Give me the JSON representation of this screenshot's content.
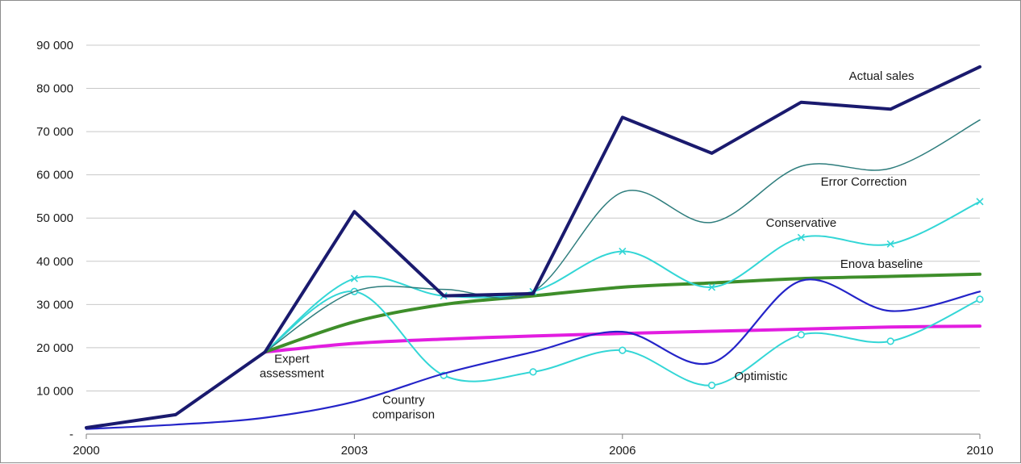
{
  "chart_data": {
    "type": "line",
    "title": "",
    "xlabel": "",
    "ylabel": "",
    "x": [
      2000,
      2001,
      2002,
      2003,
      2004,
      2005,
      2006,
      2007,
      2008,
      2009,
      2010
    ],
    "xlim": [
      2000,
      2010
    ],
    "ylim": [
      0,
      90000
    ],
    "x_tick_labels": [
      "2000",
      "2003",
      "2006",
      "2010"
    ],
    "x_tick_values": [
      2000,
      2003,
      2006,
      2010
    ],
    "y_tick_labels": [
      "-",
      "10 000",
      "20 000",
      "30 000",
      "40 000",
      "50 000",
      "60 000",
      "70 000",
      "80 000",
      "90 000"
    ],
    "y_tick_values": [
      0,
      10000,
      20000,
      30000,
      40000,
      50000,
      60000,
      70000,
      80000,
      90000
    ],
    "grid": true,
    "legend": "none",
    "series": [
      {
        "name": "Actual sales",
        "color": "#1a1a6e",
        "marker": "none",
        "smooth": false,
        "x": [
          2000,
          2001,
          2002,
          2003,
          2004,
          2005,
          2006,
          2007,
          2008,
          2009,
          2010
        ],
        "values": [
          1500,
          4500,
          19000,
          51500,
          32000,
          32500,
          73300,
          65000,
          76800,
          75200,
          85000
        ]
      },
      {
        "name": "Error Correction",
        "color": "#2e7d7d",
        "marker": "none",
        "smooth": true,
        "x": [
          2002,
          2003,
          2004,
          2005,
          2006,
          2007,
          2008,
          2009,
          2010
        ],
        "values": [
          19000,
          33000,
          33500,
          33000,
          56000,
          49000,
          62000,
          61500,
          72700
        ]
      },
      {
        "name": "Conservative",
        "color": "#33d6d6",
        "marker": "x",
        "smooth": true,
        "x": [
          2002,
          2003,
          2004,
          2005,
          2006,
          2007,
          2008,
          2009,
          2010
        ],
        "values": [
          19000,
          36000,
          32000,
          33000,
          42300,
          34000,
          45500,
          44000,
          53800
        ]
      },
      {
        "name": "Enova baseline",
        "color": "#3e8e2a",
        "marker": "none",
        "smooth": true,
        "x": [
          2002,
          2003,
          2004,
          2005,
          2006,
          2007,
          2008,
          2009,
          2010
        ],
        "values": [
          19000,
          26000,
          30000,
          32000,
          34000,
          35000,
          36000,
          36500,
          37000
        ]
      },
      {
        "name": "Expert assessment",
        "color": "#e21de0",
        "marker": "none",
        "smooth": true,
        "x": [
          2002,
          2003,
          2004,
          2005,
          2006,
          2007,
          2008,
          2009,
          2010
        ],
        "values": [
          19000,
          21000,
          22000,
          22700,
          23300,
          23800,
          24300,
          24800,
          25000
        ]
      },
      {
        "name": "Optimistic",
        "color": "#33d6d6",
        "marker": "o",
        "smooth": true,
        "x": [
          2002,
          2003,
          2004,
          2005,
          2006,
          2007,
          2008,
          2009,
          2010
        ],
        "values": [
          19000,
          33000,
          13600,
          14400,
          19400,
          11300,
          23000,
          21500,
          31200
        ]
      },
      {
        "name": "Country comparison",
        "color": "#2424c8",
        "marker": "none",
        "smooth": true,
        "x": [
          2000,
          2001,
          2002,
          2003,
          2004,
          2005,
          2006,
          2007,
          2008,
          2009,
          2010
        ],
        "values": [
          1200,
          2200,
          3800,
          7500,
          14000,
          19000,
          23700,
          16500,
          35500,
          28500,
          33000
        ]
      }
    ],
    "annotations": [
      {
        "id": "actual",
        "lines": [
          "Actual sales"
        ],
        "x": 2008.9,
        "y": 82000
      },
      {
        "id": "errcorr",
        "lines": [
          "Error Correction"
        ],
        "x": 2008.7,
        "y": 57500
      },
      {
        "id": "conservative",
        "lines": [
          "Conservative"
        ],
        "x": 2008.0,
        "y": 48000
      },
      {
        "id": "enova",
        "lines": [
          "Enova baseline"
        ],
        "x": 2008.9,
        "y": 38500
      },
      {
        "id": "expert",
        "lines": [
          "Expert",
          "assessment"
        ],
        "x": 2002.3,
        "y": 16500
      },
      {
        "id": "optimistic",
        "lines": [
          "Optimistic"
        ],
        "x": 2007.55,
        "y": 12500
      },
      {
        "id": "country",
        "lines": [
          "Country",
          "comparison"
        ],
        "x": 2003.55,
        "y": 7000
      }
    ]
  }
}
